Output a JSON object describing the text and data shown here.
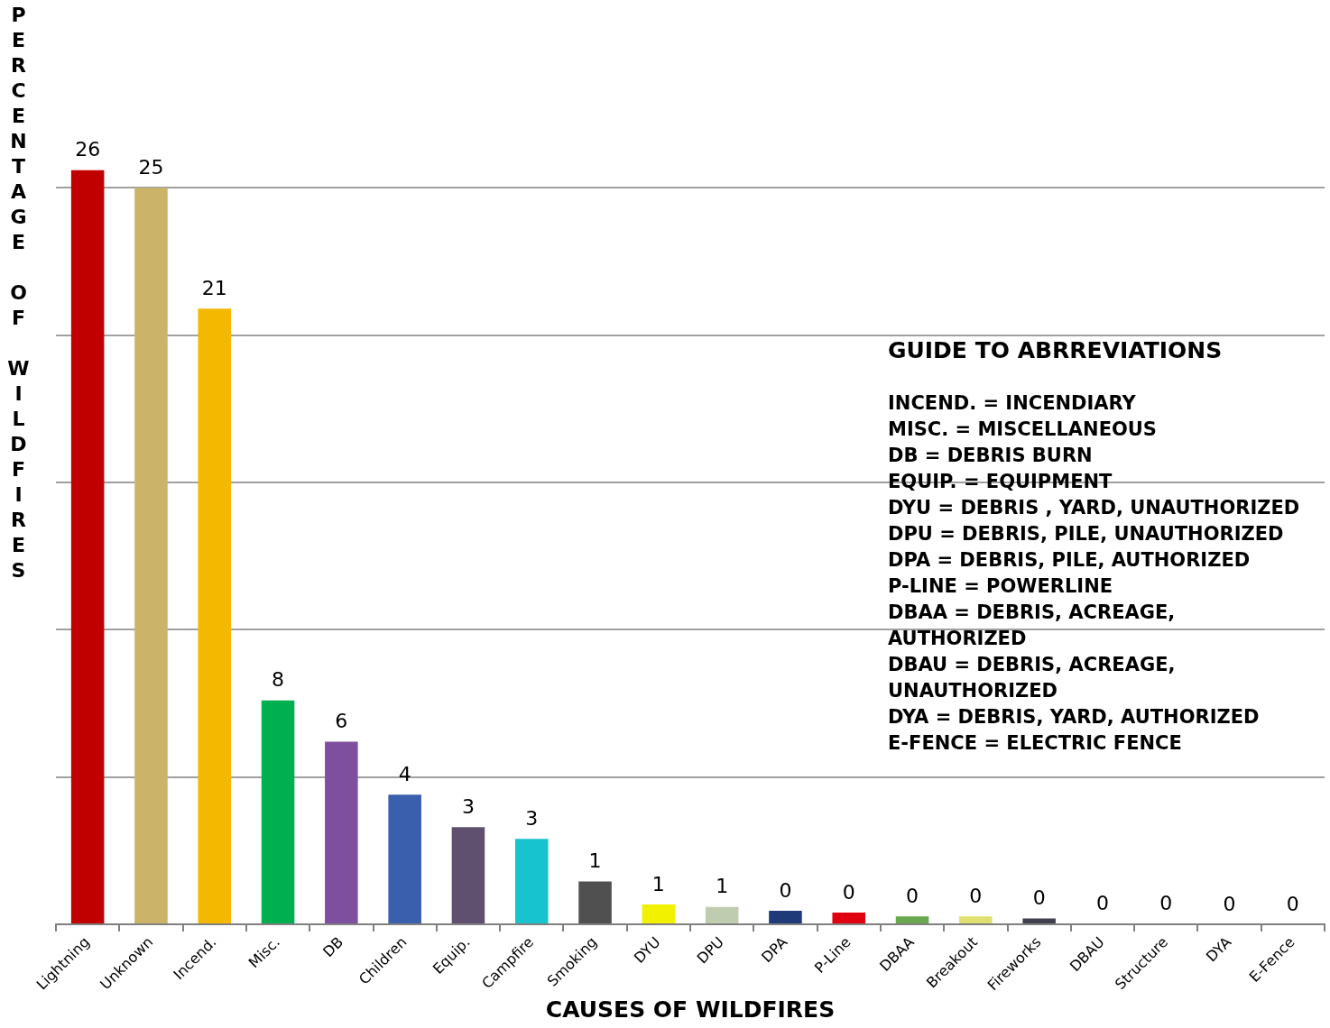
{
  "chart_data": {
    "type": "bar",
    "xlabel": "CAUSES OF WILDFIRES",
    "ylabel": "PERCENTAGE OF WILDFIRES",
    "categories": [
      "Lightning",
      "Unknown",
      "Incend.",
      "Misc.",
      "DB",
      "Children",
      "Equip.",
      "Campfire",
      "Smoking",
      "DYU",
      "DPU",
      "DPA",
      "P-Line",
      "DBAA",
      "Breakout",
      "Fireworks",
      "DBAU",
      "Structure",
      "DYA",
      "E-Fence"
    ],
    "values": [
      25.6,
      25.0,
      20.9,
      7.6,
      6.2,
      4.4,
      3.3,
      2.9,
      1.45,
      0.67,
      0.59,
      0.46,
      0.4,
      0.27,
      0.27,
      0.2,
      0.03,
      0.03,
      0,
      0
    ],
    "value_labels": [
      "26",
      "25",
      "21",
      "8",
      "6",
      "4",
      "3",
      "3",
      "1",
      "1",
      "1",
      "0",
      "0",
      "0",
      "0",
      "0",
      "0",
      "0",
      "0",
      "0"
    ],
    "colors": [
      "#c00000",
      "#cbb46a",
      "#f5b800",
      "#00b050",
      "#7f4f9f",
      "#3a5fad",
      "#5f5070",
      "#17c3cf",
      "#505050",
      "#f2f200",
      "#c0ccb0",
      "#1f3a78",
      "#e00010",
      "#6aa84f",
      "#e0e070",
      "#404050",
      "#a0a0a0",
      "#c8c8a0",
      "#c0c0c0",
      "#c0c0c0"
    ],
    "yticks": [
      {
        "value": 0,
        "label": null
      },
      {
        "value": 5,
        "label": null
      },
      {
        "value": 10,
        "label": null
      },
      {
        "value": 15,
        "label": null
      },
      {
        "value": 20,
        "label": null
      },
      {
        "value": 25,
        "label": null
      }
    ],
    "grid": "y",
    "legend": false,
    "tick_labels": "x",
    "annotations": [
      "GUIDE TO ABRREVIATIONS",
      "INCEND. = INCENDIARY",
      "MISC. = MISCELLANEOUS",
      "DB = DEBRIS BURN",
      "EQUIP. = EQUIPMENT",
      "DYU = DEBRIS , YARD, UNAUTHORIZED",
      "DPU = DEBRIS, PILE, UNAUTHORIZED",
      "DPA = DEBRIS, PILE, AUTHORIZED",
      "P-LINE = POWERLINE",
      "DBAA = DEBRIS, ACREAGE, AUTHORIZED",
      "DBAU = DEBRIS, ACREAGE, UNAUTHORIZED",
      "DYA = DEBRIS, YARD, AUTHORIZED",
      "E-FENCE = ELECTRIC FENCE"
    ]
  }
}
